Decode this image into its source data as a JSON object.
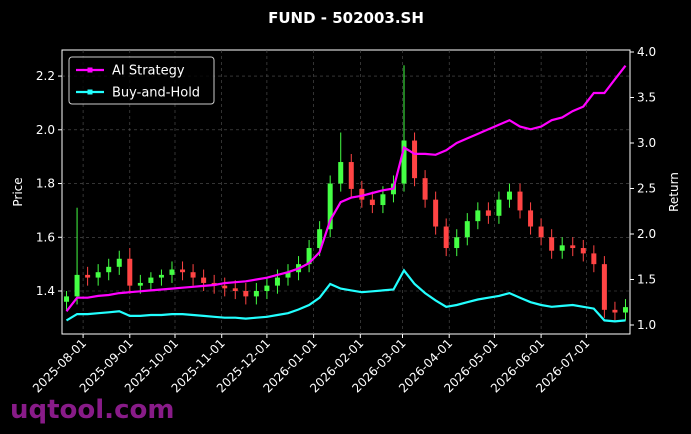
{
  "chart_data": {
    "type": "candlestick-returns",
    "title": "FUND - 502003.SH",
    "ylabel": "Price",
    "y2label": "Return",
    "watermark": "uqtool.com",
    "x": [
      "2025-07-21",
      "2025-07-28",
      "2025-08-04",
      "2025-08-11",
      "2025-08-18",
      "2025-08-25",
      "2025-09-01",
      "2025-09-08",
      "2025-09-15",
      "2025-09-22",
      "2025-09-29",
      "2025-10-06",
      "2025-10-13",
      "2025-10-20",
      "2025-10-27",
      "2025-11-03",
      "2025-11-10",
      "2025-11-17",
      "2025-11-24",
      "2025-12-01",
      "2025-12-08",
      "2025-12-15",
      "2025-12-22",
      "2025-12-29",
      "2026-01-05",
      "2026-01-12",
      "2026-01-19",
      "2026-01-26",
      "2026-02-02",
      "2026-02-09",
      "2026-02-16",
      "2026-02-23",
      "2026-03-02",
      "2026-03-09",
      "2026-03-16",
      "2026-03-23",
      "2026-03-30",
      "2026-04-06",
      "2026-04-13",
      "2026-04-20",
      "2026-04-27",
      "2026-05-04",
      "2026-05-11",
      "2026-05-18",
      "2026-05-25",
      "2026-06-01",
      "2026-06-08",
      "2026-06-15",
      "2026-06-22",
      "2026-06-29",
      "2026-07-06",
      "2026-07-13",
      "2026-07-20",
      "2026-07-27"
    ],
    "open": [
      1.36,
      1.38,
      1.46,
      1.45,
      1.47,
      1.49,
      1.52,
      1.42,
      1.43,
      1.45,
      1.46,
      1.48,
      1.47,
      1.45,
      1.43,
      1.42,
      1.41,
      1.4,
      1.38,
      1.4,
      1.42,
      1.45,
      1.47,
      1.5,
      1.56,
      1.63,
      1.8,
      1.88,
      1.78,
      1.74,
      1.72,
      1.76,
      1.8,
      1.96,
      1.82,
      1.74,
      1.64,
      1.56,
      1.6,
      1.66,
      1.7,
      1.68,
      1.74,
      1.77,
      1.7,
      1.64,
      1.6,
      1.55,
      1.57,
      1.56,
      1.54,
      1.5,
      1.33,
      1.32
    ],
    "high": [
      1.4,
      1.71,
      1.49,
      1.5,
      1.52,
      1.55,
      1.56,
      1.46,
      1.47,
      1.48,
      1.51,
      1.51,
      1.5,
      1.48,
      1.46,
      1.45,
      1.44,
      1.43,
      1.43,
      1.45,
      1.48,
      1.5,
      1.53,
      1.59,
      1.66,
      1.83,
      1.99,
      1.91,
      1.81,
      1.77,
      1.79,
      1.83,
      2.24,
      1.99,
      1.85,
      1.77,
      1.67,
      1.63,
      1.69,
      1.73,
      1.73,
      1.77,
      1.8,
      1.8,
      1.73,
      1.67,
      1.63,
      1.6,
      1.6,
      1.59,
      1.57,
      1.53,
      1.36,
      1.37
    ],
    "low": [
      1.33,
      1.35,
      1.42,
      1.42,
      1.44,
      1.46,
      1.39,
      1.39,
      1.4,
      1.42,
      1.43,
      1.44,
      1.42,
      1.4,
      1.39,
      1.38,
      1.37,
      1.35,
      1.35,
      1.37,
      1.39,
      1.42,
      1.44,
      1.47,
      1.53,
      1.6,
      1.77,
      1.75,
      1.71,
      1.69,
      1.69,
      1.73,
      1.77,
      1.79,
      1.71,
      1.61,
      1.53,
      1.53,
      1.57,
      1.63,
      1.65,
      1.65,
      1.71,
      1.67,
      1.61,
      1.57,
      1.52,
      1.52,
      1.53,
      1.51,
      1.47,
      1.3,
      1.29,
      1.29
    ],
    "close": [
      1.38,
      1.46,
      1.45,
      1.47,
      1.49,
      1.52,
      1.42,
      1.43,
      1.45,
      1.46,
      1.48,
      1.47,
      1.45,
      1.43,
      1.42,
      1.41,
      1.4,
      1.38,
      1.4,
      1.42,
      1.45,
      1.47,
      1.5,
      1.56,
      1.63,
      1.8,
      1.88,
      1.78,
      1.74,
      1.72,
      1.76,
      1.8,
      1.96,
      1.82,
      1.74,
      1.64,
      1.56,
      1.6,
      1.66,
      1.7,
      1.68,
      1.74,
      1.77,
      1.7,
      1.64,
      1.6,
      1.55,
      1.57,
      1.56,
      1.54,
      1.5,
      1.33,
      1.32,
      1.34
    ],
    "up_color": "#44ff44",
    "down_color": "#ff4444",
    "series": [
      {
        "name": "AI Strategy",
        "color": "#ff00ff",
        "axis": "y2",
        "values": [
          1.15,
          1.3,
          1.3,
          1.32,
          1.33,
          1.35,
          1.36,
          1.37,
          1.38,
          1.39,
          1.4,
          1.41,
          1.42,
          1.43,
          1.44,
          1.46,
          1.47,
          1.48,
          1.5,
          1.52,
          1.55,
          1.58,
          1.62,
          1.68,
          1.8,
          2.15,
          2.35,
          2.4,
          2.42,
          2.45,
          2.48,
          2.5,
          2.95,
          2.88,
          2.88,
          2.87,
          2.92,
          3.0,
          3.05,
          3.1,
          3.15,
          3.2,
          3.25,
          3.18,
          3.15,
          3.18,
          3.25,
          3.28,
          3.35,
          3.4,
          3.55,
          3.55,
          3.7,
          3.85
        ]
      },
      {
        "name": "Buy-and-Hold",
        "color": "#22ffff",
        "axis": "y2",
        "values": [
          1.05,
          1.12,
          1.12,
          1.13,
          1.14,
          1.15,
          1.1,
          1.1,
          1.11,
          1.11,
          1.12,
          1.12,
          1.11,
          1.1,
          1.09,
          1.08,
          1.08,
          1.07,
          1.08,
          1.09,
          1.11,
          1.13,
          1.17,
          1.22,
          1.3,
          1.45,
          1.4,
          1.38,
          1.36,
          1.37,
          1.38,
          1.39,
          1.6,
          1.45,
          1.35,
          1.27,
          1.2,
          1.22,
          1.25,
          1.28,
          1.3,
          1.32,
          1.35,
          1.3,
          1.25,
          1.22,
          1.2,
          1.21,
          1.22,
          1.2,
          1.18,
          1.05,
          1.04,
          1.05
        ]
      }
    ],
    "xlim": [
      "2025-07-18",
      "2026-07-30"
    ],
    "xticks": [
      "2025-08-01",
      "2025-09-01",
      "2025-10-01",
      "2025-11-01",
      "2025-12-01",
      "2026-01-01",
      "2026-02-01",
      "2026-03-01",
      "2026-04-01",
      "2026-05-01",
      "2026-06-01",
      "2026-07-01"
    ],
    "ylim": [
      1.24,
      2.297
    ],
    "yticks": [
      1.4,
      1.6,
      1.8,
      {
        "value": 2,
        "label": "2.0"
      },
      2.2
    ],
    "y2lim": [
      0.901,
      4.022
    ],
    "y2ticks": [
      {
        "value": 1,
        "label": "1.0"
      },
      1.5,
      {
        "value": 2,
        "label": "2.0"
      },
      2.5,
      {
        "value": 3,
        "label": "3.0"
      },
      3.5,
      {
        "value": 4,
        "label": "4.0"
      }
    ],
    "grid": true,
    "legend": "upper left"
  }
}
